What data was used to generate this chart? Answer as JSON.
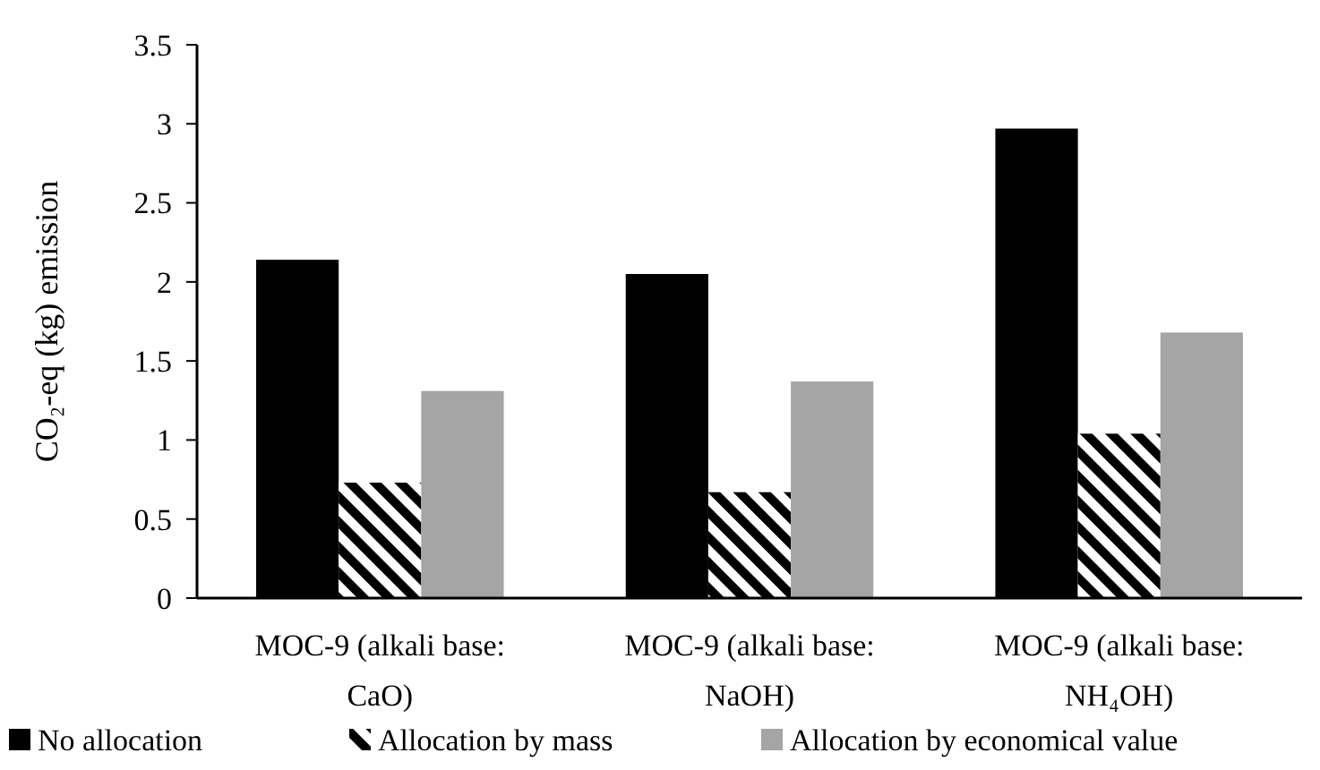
{
  "chart_data": {
    "type": "bar",
    "ylabel": "CO₂-eq (kg) emission",
    "categories": [
      "MOC-9 (alkali base: CaO)",
      "MOC-9 (alkali base: NaOH)",
      "MOC-9 (alkali base: NH₄OH)"
    ],
    "series": [
      {
        "name": "No allocation",
        "color": "#000000",
        "values": [
          2.14,
          2.05,
          2.97
        ]
      },
      {
        "name": "Allocation by mass",
        "color": "#000000",
        "values": [
          0.73,
          0.67,
          1.04
        ]
      },
      {
        "name": "Allocation by economical value",
        "color": "#a5a5a5",
        "values": [
          1.31,
          1.37,
          1.68
        ]
      }
    ],
    "ylim": [
      0,
      3.5
    ],
    "yticks": [
      0,
      0.5,
      1,
      1.5,
      2,
      2.5,
      3,
      3.5
    ],
    "grid": false,
    "legend": "bottom"
  }
}
